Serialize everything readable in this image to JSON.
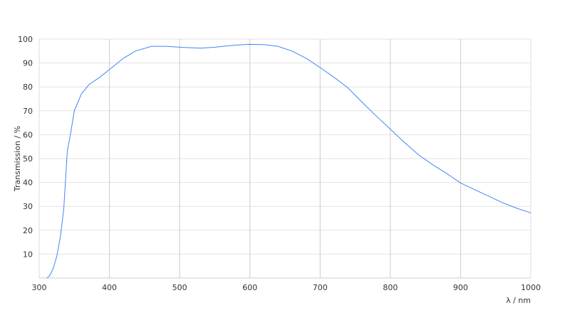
{
  "chart_data": {
    "type": "line",
    "title": "",
    "xlabel": "λ / nm",
    "ylabel": "Transmission / %",
    "xlim": [
      300,
      1000
    ],
    "ylim": [
      0,
      100
    ],
    "xticks": [
      300,
      400,
      500,
      600,
      700,
      800,
      900,
      1000
    ],
    "yticks": [
      10,
      20,
      30,
      40,
      50,
      60,
      70,
      80,
      90,
      100
    ],
    "grid": true,
    "line_color": "#4285f4",
    "series": [
      {
        "x": [
          311,
          315,
          320,
          325,
          330,
          335,
          340,
          345,
          350,
          360,
          371,
          386,
          401,
          420,
          437,
          460,
          480,
          500,
          530,
          550,
          580,
          600,
          620,
          640,
          660,
          680,
          700,
          720,
          740,
          760,
          780,
          800,
          820,
          840,
          860,
          880,
          900,
          920,
          940,
          960,
          980,
          1000
        ],
        "y": [
          0,
          1,
          4,
          9,
          17,
          29,
          53,
          61,
          70,
          77,
          81,
          84,
          87.5,
          92,
          95,
          97,
          97,
          96.6,
          96.2,
          96.6,
          97.5,
          97.8,
          97.7,
          97,
          95,
          92,
          88.1,
          84,
          79.5,
          73.5,
          67.8,
          62.3,
          56.8,
          51.6,
          47.5,
          43.8,
          39.8,
          37,
          34.3,
          31.5,
          29.2,
          27.3
        ]
      }
    ]
  }
}
